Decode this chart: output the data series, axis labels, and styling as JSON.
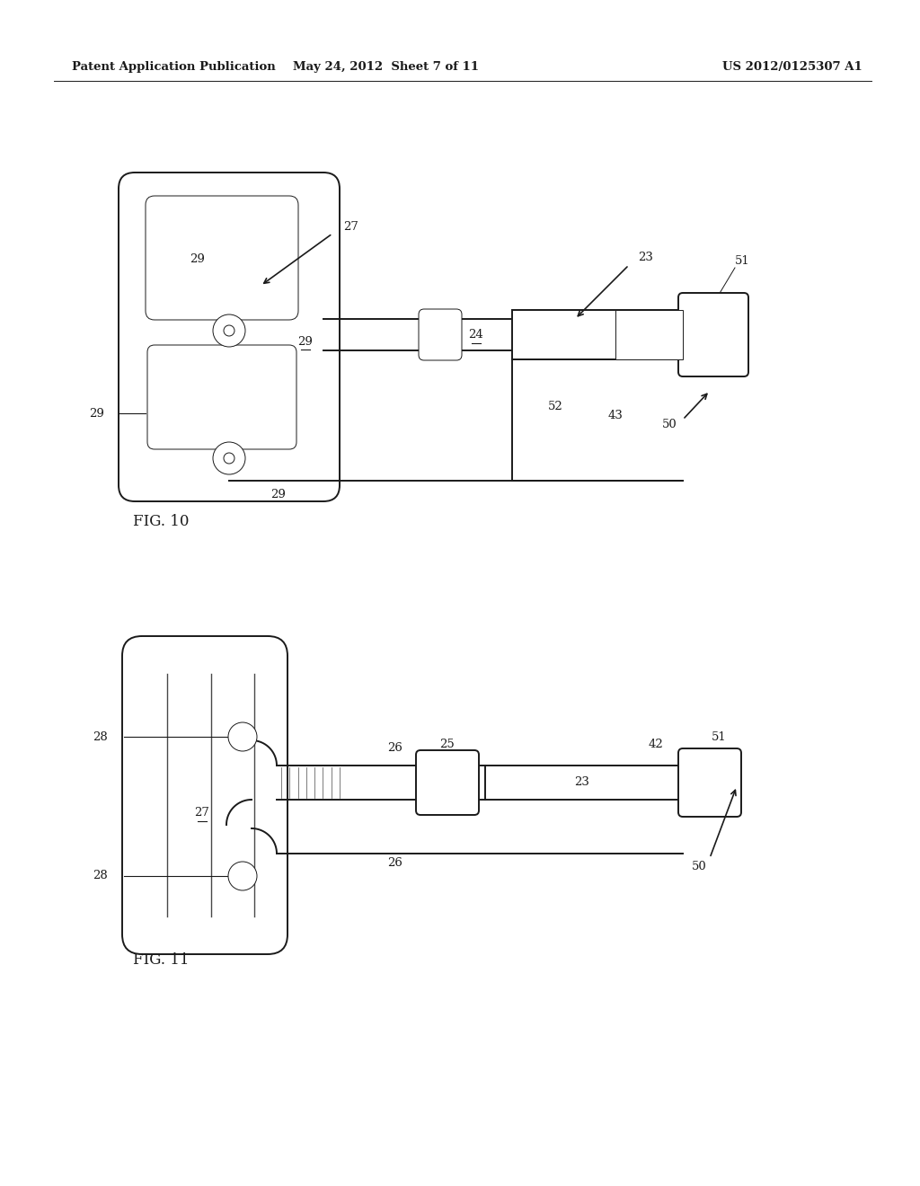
{
  "bg_color": "#ffffff",
  "line_color": "#1a1a1a",
  "header_left": "Patent Application Publication",
  "header_mid": "May 24, 2012  Sheet 7 of 11",
  "header_right": "US 2012/0125307 A1",
  "fig10_label": "FIG. 10",
  "fig11_label": "FIG. 11",
  "lw_main": 1.4,
  "lw_thin": 0.7,
  "fs_label": 9.5,
  "fs_fig": 12
}
